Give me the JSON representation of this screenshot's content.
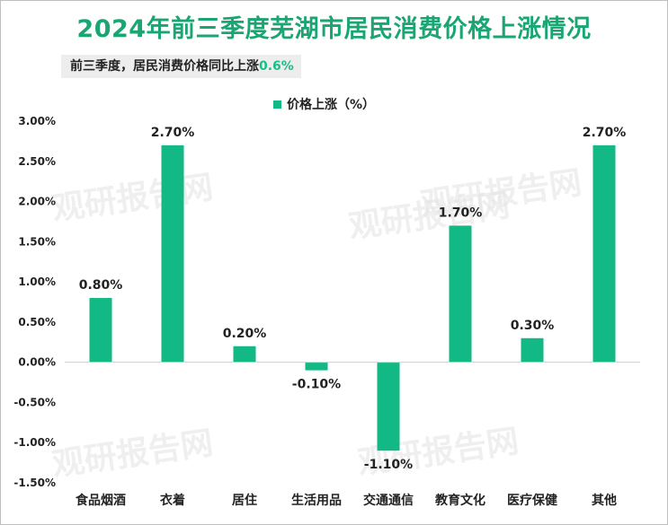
{
  "header": {
    "title": "2024年前三季度芜湖市居民消费价格上涨情况",
    "subtitle_prefix": "前三季度，居民消费价格同比上涨",
    "subtitle_value": "0.6%"
  },
  "watermark": "观研报告网",
  "colors": {
    "bar": "#13b985",
    "title": "#1aa673",
    "highlight": "#1bbf86"
  },
  "chart_data": {
    "type": "bar",
    "title": "2024年前三季度芜湖市居民消费价格上涨情况",
    "legend": "价格上涨（%）",
    "legend_position": "top-center",
    "categories": [
      "食品烟酒",
      "衣着",
      "居住",
      "生活用品",
      "交通通信",
      "教育文化",
      "医疗保健",
      "其他"
    ],
    "values": [
      0.8,
      2.7,
      0.2,
      -0.1,
      -1.1,
      1.7,
      0.3,
      2.7
    ],
    "data_labels": [
      "0.80%",
      "2.70%",
      "0.20%",
      "-0.10%",
      "-1.10%",
      "1.70%",
      "0.30%",
      "2.70%"
    ],
    "ylim": [
      -1.5,
      3.0
    ],
    "yticks": [
      3.0,
      2.5,
      2.0,
      1.5,
      1.0,
      0.5,
      0.0,
      -0.5,
      -1.0,
      -1.5
    ],
    "ytick_labels": [
      "3.00%",
      "2.50%",
      "2.00%",
      "1.50%",
      "1.00%",
      "0.50%",
      "0.00%",
      "-0.50%",
      "-1.00%",
      "-1.50%"
    ],
    "xlabel": "",
    "ylabel": "",
    "grid": false
  }
}
